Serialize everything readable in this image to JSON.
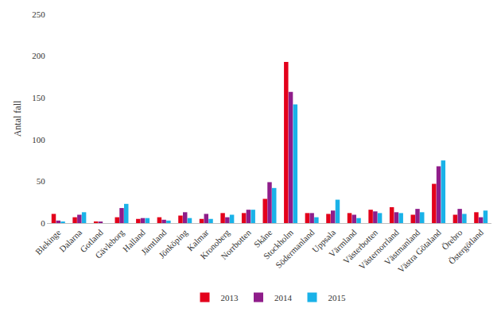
{
  "chart_data": {
    "type": "bar",
    "y_label": "Antal fall",
    "categories": [
      "Blekinge",
      "Dalarna",
      "Gotland",
      "Gävleborg",
      "Halland",
      "Jämtland",
      "Jönköping",
      "Kalmar",
      "Kronoberg",
      "Norrbotten",
      "Skåne",
      "Stockholm",
      "Södermanland",
      "Uppsala",
      "Värmland",
      "Västerbotten",
      "Västernorrland",
      "Västmanland",
      "Västra Götaland",
      "Örebro",
      "Östergötland"
    ],
    "series": [
      {
        "name": "2013",
        "color": "#e3001b",
        "values": [
          11,
          7,
          2,
          7,
          5,
          7,
          9,
          5,
          12,
          12,
          29,
          193,
          12,
          11,
          12,
          16,
          19,
          10,
          47,
          10,
          13
        ]
      },
      {
        "name": "2014",
        "color": "#8f1d8a",
        "values": [
          3,
          10,
          1,
          18,
          6,
          4,
          13,
          11,
          7,
          16,
          49,
          157,
          12,
          15,
          10,
          14,
          13,
          17,
          68,
          17,
          7
        ]
      },
      {
        "name": "2015",
        "color": "#1ab2e8",
        "values": [
          1,
          13,
          0,
          23,
          6,
          3,
          6,
          5,
          10,
          16,
          42,
          142,
          7,
          28,
          6,
          12,
          12,
          13,
          75,
          11,
          15
        ]
      }
    ],
    "ylim": [
      0,
      250
    ],
    "yticks": [
      0,
      50,
      100,
      150,
      200,
      250
    ],
    "grid": false,
    "legend": "bottom"
  }
}
